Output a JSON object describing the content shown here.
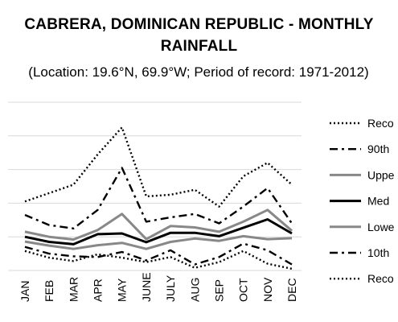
{
  "chart_data": {
    "type": "line",
    "title": [
      "CABRERA, DOMINICAN REPUBLIC - MONTHLY",
      "RAINFALL"
    ],
    "subtitle": "(Location: 19.6°N, 69.9°W; Period of record: 1971-2012)",
    "categories": [
      "JAN",
      "FEB",
      "MAR",
      "APR",
      "MAY",
      "JUNE",
      "JULY",
      "AUG",
      "SEP",
      "OCT",
      "NOV",
      "DEC"
    ],
    "ylim": [
      0,
      500
    ],
    "grid": true,
    "legend_position": "right",
    "series": [
      {
        "name": "Reco",
        "style": "dotted",
        "color": "#000000",
        "values": [
          205,
          230,
          255,
          345,
          425,
          220,
          225,
          240,
          190,
          280,
          320,
          255
        ]
      },
      {
        "name": "90th",
        "style": "dashdot",
        "color": "#000000",
        "values": [
          165,
          135,
          125,
          180,
          305,
          145,
          158,
          168,
          140,
          190,
          245,
          140
        ]
      },
      {
        "name": "Uppe",
        "style": "solid",
        "color": "#888888",
        "values": [
          115,
          100,
          92,
          120,
          168,
          93,
          132,
          128,
          115,
          145,
          180,
          118
        ]
      },
      {
        "name": "Med",
        "style": "solid",
        "color": "#000000",
        "values": [
          100,
          85,
          78,
          108,
          110,
          84,
          112,
          112,
          102,
          127,
          152,
          110
        ]
      },
      {
        "name": "Lowe",
        "style": "solid",
        "color": "#888888",
        "values": [
          86,
          74,
          64,
          75,
          82,
          64,
          85,
          95,
          88,
          102,
          93,
          96
        ]
      },
      {
        "name": "10th",
        "style": "dashdot",
        "color": "#000000",
        "values": [
          70,
          50,
          42,
          40,
          55,
          30,
          60,
          18,
          40,
          80,
          60,
          18
        ]
      },
      {
        "name": "Reco",
        "style": "dotted",
        "color": "#000000",
        "values": [
          58,
          38,
          28,
          48,
          38,
          25,
          40,
          8,
          25,
          58,
          20,
          5
        ]
      }
    ]
  }
}
